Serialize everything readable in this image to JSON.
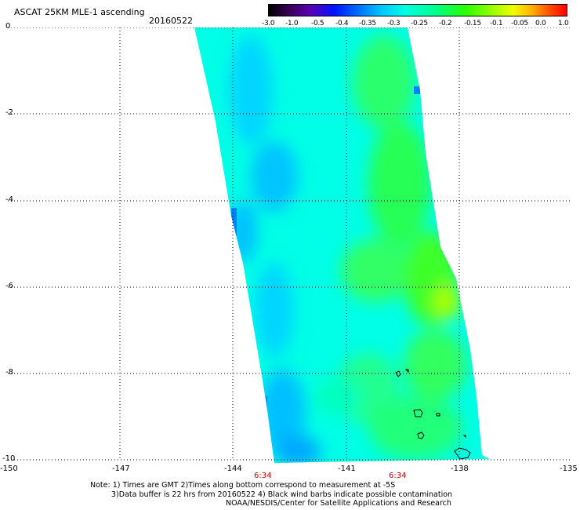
{
  "header": {
    "title": "ASCAT 25KM MLE-1 ascending",
    "date": "20160522"
  },
  "colorbar": {
    "ticks": [
      "-3.0",
      "-1.0",
      "-0.5",
      "-0.4",
      "-0.35",
      "-0.3",
      "-0.25",
      "-0.2",
      "-0.15",
      "-0.1",
      "-0.05",
      "0.0",
      "1.0"
    ]
  },
  "map": {
    "lat_labels": [
      "0",
      "-2",
      "-4",
      "-6",
      "-8",
      "-10"
    ],
    "lon_labels": [
      "-150",
      "-147",
      "-144",
      "-141",
      "-138",
      "-135"
    ],
    "time_labels": [
      "6:34",
      "6:34"
    ],
    "colors": {
      "background": "#ffffff",
      "grid": "#000000",
      "swath_main": "#00ffe6",
      "swath_blue": "#00c8ff",
      "swath_green": "#28ff46",
      "time_label": "#cc0000"
    }
  },
  "notes": {
    "line1": "Note: 1) Times are GMT 2)Times along bottom correspond to measurement at -5S",
    "line2": "3)Data buffer is 22 hrs from 20160522 4) Black wind barbs indicate possible contamination",
    "line3": "NOAA/NESDIS/Center for Satellite Applications and Research"
  }
}
